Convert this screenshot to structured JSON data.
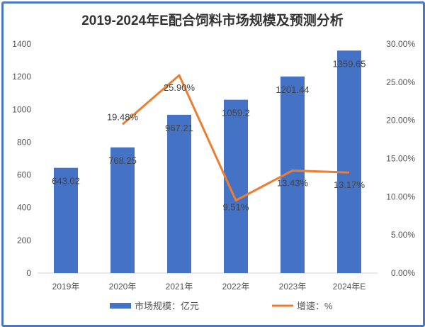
{
  "chart_data": {
    "type": "bar+line",
    "title": "2019-2024年E配合饲料市场规模及预测分析",
    "categories": [
      "2019年",
      "2020年",
      "2021年",
      "2022年",
      "2023年",
      "2024年E"
    ],
    "series": [
      {
        "name": "市场规模：亿元",
        "type": "bar",
        "axis": "left",
        "color": "#4472c4",
        "values": [
          643.02,
          768.25,
          967.21,
          1059.2,
          1201.44,
          1359.65
        ],
        "labels": [
          "643.02",
          "768.25",
          "967.21",
          "1059.2",
          "1201.44",
          "1359.65"
        ]
      },
      {
        "name": "增速：%",
        "type": "line",
        "axis": "right",
        "color": "#ed7d31",
        "values": [
          null,
          19.48,
          25.9,
          9.51,
          13.43,
          13.17
        ],
        "labels": [
          "",
          "19.48%",
          "25.90%",
          "9.51%",
          "13.43%",
          "13.17%"
        ]
      }
    ],
    "left_axis": {
      "ylim": [
        0,
        1400
      ],
      "ticks": [
        "0",
        "200",
        "400",
        "600",
        "800",
        "1000",
        "1200",
        "1400"
      ]
    },
    "right_axis": {
      "ylim": [
        0,
        30
      ],
      "ticks": [
        "0.00%",
        "5.00%",
        "10.00%",
        "15.00%",
        "20.00%",
        "25.00%",
        "30.00%"
      ]
    },
    "grid": false,
    "legend": "bottom"
  }
}
